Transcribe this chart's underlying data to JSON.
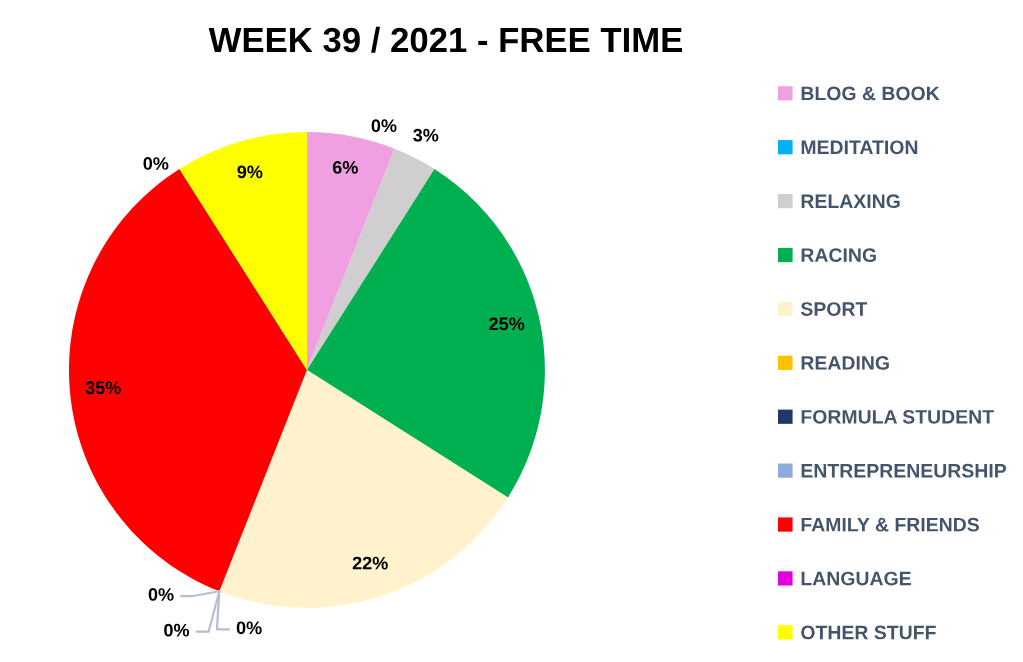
{
  "chart_data": {
    "type": "pie",
    "title": "WEEK 39 / 2021 - FREE TIME",
    "categories": [
      "BLOG & BOOK",
      "MEDITATION",
      "RELAXING",
      "RACING",
      "SPORT",
      "READING",
      "FORMULA STUDENT",
      "ENTREPRENEURSHIP",
      "FAMILY & FRIENDS",
      "LANGUAGE",
      "OTHER STUFF"
    ],
    "values": [
      6,
      0,
      3,
      25,
      22,
      0,
      0,
      0,
      35,
      0,
      9
    ],
    "colors": [
      "#f0a0e0",
      "#00b0f0",
      "#d0cece",
      "#00b050",
      "#fff2cc",
      "#ffc000",
      "#203864",
      "#8faadc",
      "#ff0000",
      "#e000e0",
      "#ffff00"
    ],
    "value_labels": [
      "6%",
      "0%",
      "3%",
      "25%",
      "22%",
      "0%",
      "0%",
      "0%",
      "35%",
      "0%",
      "9%"
    ],
    "legend": "right"
  }
}
